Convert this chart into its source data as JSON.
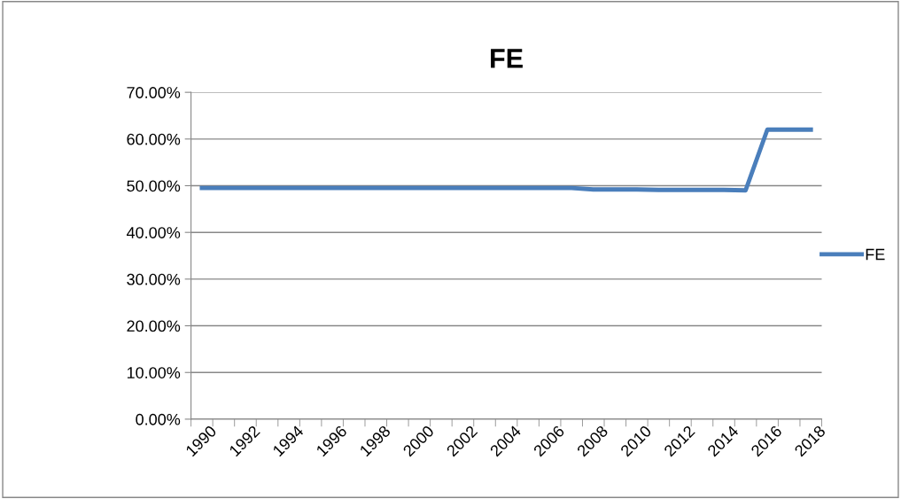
{
  "chart_data": {
    "type": "line",
    "title": "FE",
    "categories": [
      "1990",
      null,
      "1992",
      null,
      "1994",
      null,
      "1996",
      null,
      "1998",
      null,
      "2000",
      null,
      "2002",
      null,
      "2004",
      null,
      "2006",
      null,
      "2008",
      null,
      "2010",
      null,
      "2012",
      null,
      "2014",
      null,
      "2016",
      null,
      "2018"
    ],
    "series": [
      {
        "name": "FE",
        "color": "#4a7ebb",
        "values": [
          49.5,
          49.5,
          49.5,
          49.5,
          49.5,
          49.5,
          49.5,
          49.5,
          49.5,
          49.5,
          49.5,
          49.5,
          49.5,
          49.5,
          49.5,
          49.5,
          49.5,
          49.5,
          49.2,
          49.2,
          49.2,
          49.1,
          49.1,
          49.1,
          49.1,
          49.0,
          62.0,
          62.0,
          62.0
        ]
      }
    ],
    "ylim": [
      0,
      70
    ],
    "yticks": [
      {
        "value": 0,
        "label": "0.00%"
      },
      {
        "value": 10,
        "label": "10.00%"
      },
      {
        "value": 20,
        "label": "20.00%"
      },
      {
        "value": 30,
        "label": "30.00%"
      },
      {
        "value": 40,
        "label": "40.00%"
      },
      {
        "value": 50,
        "label": "50.00%"
      },
      {
        "value": 60,
        "label": "60.00%"
      },
      {
        "value": 70,
        "label": "70.00%"
      }
    ],
    "grid": "y",
    "legend": "right",
    "marker": "none",
    "line_style": "solid"
  }
}
